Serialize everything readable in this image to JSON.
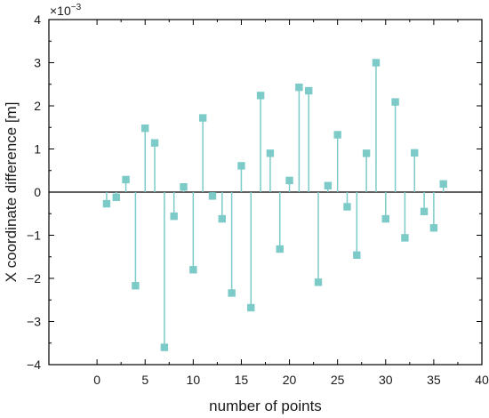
{
  "chart_data": {
    "type": "stem",
    "xlabel": "number of points",
    "ylabel": "X coordinate difference [m]",
    "scale_label": "×10",
    "scale_exponent": "−3",
    "xlim": [
      -5,
      40
    ],
    "ylim": [
      -4,
      4
    ],
    "xticks": [
      0,
      5,
      10,
      15,
      20,
      25,
      30,
      35,
      40
    ],
    "yticks": [
      -4,
      -3,
      -2,
      -1,
      0,
      1,
      2,
      3,
      4
    ],
    "grid": false,
    "marker": "square",
    "color": "#7ccbc8",
    "zero_line_color": "#000000",
    "series": [
      {
        "x": [
          1,
          2,
          3,
          4,
          5,
          6,
          7,
          8,
          9,
          10,
          11,
          12,
          13,
          14,
          15,
          16,
          17,
          18,
          19,
          20,
          21,
          22,
          23,
          24,
          25,
          26,
          27,
          28,
          29,
          30,
          31,
          32,
          33,
          34,
          35,
          36
        ],
        "values": [
          -0.27,
          -0.12,
          0.29,
          -2.17,
          1.48,
          1.14,
          -3.6,
          -0.56,
          0.12,
          -1.8,
          1.72,
          -0.09,
          -0.62,
          -2.34,
          0.61,
          -2.68,
          2.24,
          0.9,
          -1.32,
          0.27,
          2.43,
          2.35,
          -2.09,
          0.15,
          1.33,
          -0.34,
          -1.46,
          0.9,
          3.0,
          -0.62,
          2.09,
          -1.06,
          0.91,
          -0.45,
          -0.83,
          0.19
        ]
      }
    ]
  }
}
